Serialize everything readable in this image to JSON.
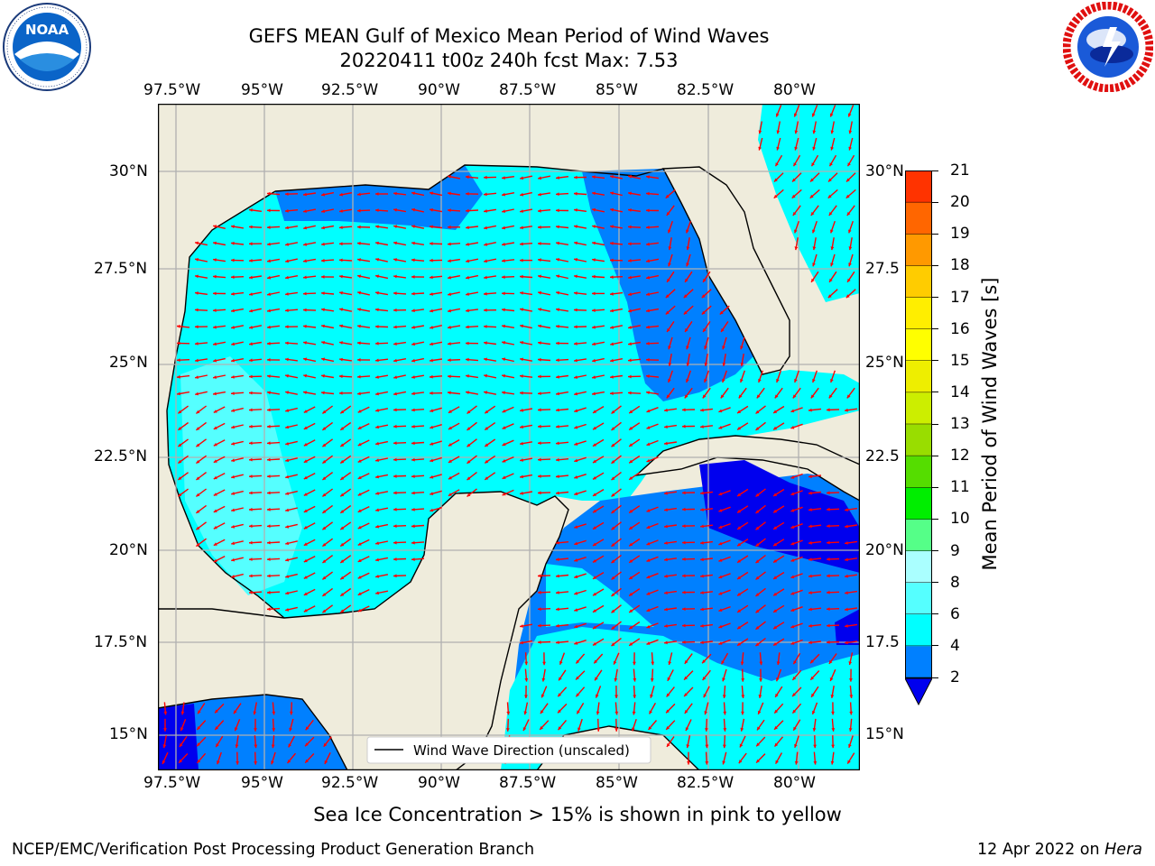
{
  "header": {
    "title_line1": "GEFS MEAN Gulf of Mexico Mean Period of Wind Waves",
    "title_line2": "20220411 t00z 240h fcst   Max: 7.53"
  },
  "logos": {
    "noaa_text": "NOAA",
    "noaa_ring_text": "NATIONAL OCEANIC AND ATMOSPHERIC ADMINISTRATION · U.S. DEPARTMENT OF COMMERCE",
    "nws_ring_text": "NATIONAL WEATHER SERVICE"
  },
  "map": {
    "lon_labels": [
      "97.5°W",
      "95°W",
      "92.5°W",
      "90°W",
      "87.5°W",
      "85°W",
      "82.5°W",
      "80°W"
    ],
    "lat_labels_left": [
      "30°N",
      "27.5°N",
      "25°N",
      "22.5°N",
      "20°N",
      "17.5°N",
      "15°N"
    ],
    "lat_labels_right": [
      "30°N",
      "27.5",
      "25°N",
      "22.5",
      "20°N",
      "17.5",
      "15°N"
    ],
    "legend_label": "Wind Wave Direction (unscaled)",
    "colors": {
      "land": "#efecdc",
      "ocean_light": "#00ffff",
      "ocean_mid": "#55ffff",
      "ocean_blue": "#0080ff",
      "ocean_dark": "#0000ee",
      "arrows": "#ff0000",
      "grid": "#b0b0b0"
    }
  },
  "colorbar": {
    "label": "Mean Period of Wind Waves [s]",
    "ticks": [
      "2",
      "4",
      "6",
      "8",
      "9",
      "10",
      "11",
      "12",
      "13",
      "14",
      "15",
      "16",
      "17",
      "18",
      "19",
      "20",
      "21"
    ],
    "colors": [
      "#0080ff",
      "#00ffff",
      "#55ffff",
      "#aaffff",
      "#55ff88",
      "#00ee00",
      "#55dd00",
      "#99dd00",
      "#ccee00",
      "#eeee00",
      "#ffff00",
      "#ffee00",
      "#ffcc00",
      "#ff9900",
      "#ff6600",
      "#ff3300",
      "#ff0000"
    ],
    "extend_color": "#0000ee"
  },
  "footer": {
    "sea_ice_note": "Sea Ice Concentration > 15% is shown in pink to yellow",
    "credit": "NCEP/EMC/Verification Post Processing Product Generation Branch",
    "date_prefix": "12 Apr 2022 on ",
    "date_machine": "Hera"
  }
}
